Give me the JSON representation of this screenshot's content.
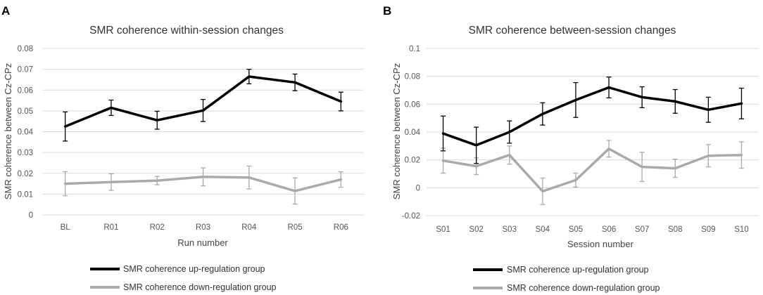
{
  "chart_data": [
    {
      "panel": "A",
      "type": "line",
      "title": "SMR coherence within-session changes",
      "xlabel": "Run number",
      "ylabel": "SMR coherence between Cz-CPz",
      "ylim": [
        0,
        0.08
      ],
      "yticks": [
        0,
        0.01,
        0.02,
        0.03,
        0.04,
        0.05,
        0.06,
        0.07,
        0.08
      ],
      "ytick_labels": [
        "0",
        "0.01",
        "0.02",
        "0.03",
        "0.04",
        "0.05",
        "0.06",
        "0.07",
        "0.08"
      ],
      "categories": [
        "BL",
        "R01",
        "R02",
        "R03",
        "R04",
        "R05",
        "R06"
      ],
      "grid": true,
      "legend": "bottom",
      "series": [
        {
          "name": "SMR coherence up-regulation group",
          "color": "#000000",
          "values": [
            0.0425,
            0.0515,
            0.0455,
            0.0502,
            0.0665,
            0.0637,
            0.0545
          ],
          "errors": [
            0.007,
            0.0037,
            0.0043,
            0.0053,
            0.0035,
            0.004,
            0.0045
          ]
        },
        {
          "name": "SMR coherence down-regulation group",
          "color": "#aaaaaa",
          "values": [
            0.015,
            0.0158,
            0.0165,
            0.0183,
            0.018,
            0.0115,
            0.017
          ],
          "errors": [
            0.0058,
            0.004,
            0.002,
            0.0043,
            0.0055,
            0.0063,
            0.0037
          ]
        }
      ]
    },
    {
      "panel": "B",
      "type": "line",
      "title": "SMR coherence between-session changes",
      "xlabel": "Session number",
      "ylabel": "SMR coherence between Cz-CPz",
      "ylim": [
        -0.02,
        0.1
      ],
      "yticks": [
        -0.02,
        0,
        0.02,
        0.04,
        0.06,
        0.08,
        0.1
      ],
      "ytick_labels": [
        "-0.02",
        "0",
        "0.02",
        "0.04",
        "0.06",
        "0.08",
        "0.1"
      ],
      "categories": [
        "S01",
        "S02",
        "S03",
        "S04",
        "S05",
        "S06",
        "S07",
        "S08",
        "S09",
        "S10"
      ],
      "grid": true,
      "legend": "bottom",
      "series": [
        {
          "name": "SMR coherence up-regulation group",
          "color": "#000000",
          "values": [
            0.039,
            0.0305,
            0.04,
            0.053,
            0.063,
            0.072,
            0.065,
            0.062,
            0.056,
            0.0605
          ],
          "errors": [
            0.0125,
            0.013,
            0.008,
            0.008,
            0.0125,
            0.0075,
            0.0075,
            0.0085,
            0.009,
            0.011
          ]
        },
        {
          "name": "SMR coherence down-regulation group",
          "color": "#aaaaaa",
          "values": [
            0.0195,
            0.0155,
            0.0235,
            -0.0025,
            0.0055,
            0.028,
            0.015,
            0.014,
            0.023,
            0.0235
          ],
          "errors": [
            0.009,
            0.006,
            0.0065,
            0.0095,
            0.005,
            0.006,
            0.0105,
            0.0065,
            0.008,
            0.0095
          ]
        }
      ]
    }
  ]
}
